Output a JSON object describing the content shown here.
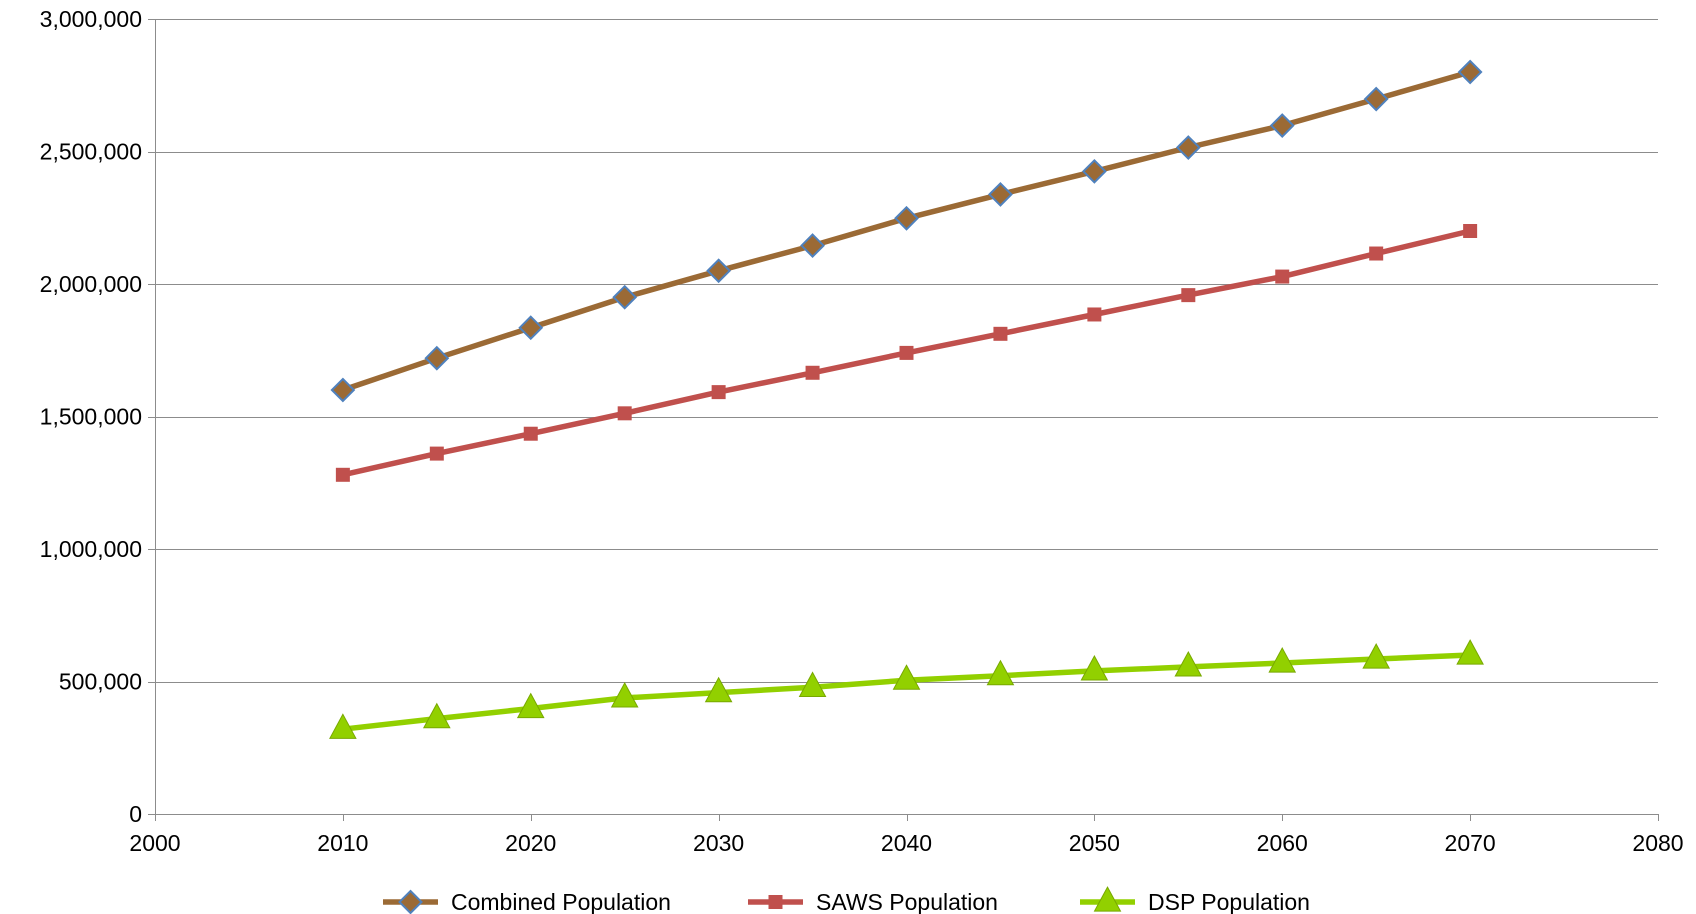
{
  "chart_data": {
    "type": "line",
    "title": "",
    "xlabel": "",
    "ylabel": "",
    "xlim": [
      2000,
      2080
    ],
    "ylim": [
      0,
      3000000
    ],
    "x_ticks": [
      2000,
      2010,
      2020,
      2030,
      2040,
      2050,
      2060,
      2070,
      2080
    ],
    "x_tick_labels": [
      "2000",
      "2010",
      "2020",
      "2030",
      "2040",
      "2050",
      "2060",
      "2070",
      "2080"
    ],
    "y_ticks": [
      0,
      500000,
      1000000,
      1500000,
      2000000,
      2500000,
      3000000
    ],
    "y_tick_labels": [
      "0",
      "500,000",
      "1,000,000",
      "1,500,000",
      "2,000,000",
      "2,500,000",
      "3,000,000"
    ],
    "grid": "horizontal",
    "legend_position": "bottom",
    "x": [
      2010,
      2015,
      2020,
      2025,
      2030,
      2035,
      2040,
      2045,
      2050,
      2055,
      2060,
      2065,
      2070
    ],
    "series": [
      {
        "name": "Combined Population",
        "color": "#9b6a35",
        "marker": "diamond",
        "marker_fill": "#9b6a35",
        "marker_stroke": "#4f81bd",
        "values": [
          1600000,
          1720000,
          1835000,
          1950000,
          2050000,
          2145000,
          2248000,
          2338000,
          2425000,
          2515000,
          2598000,
          2698000,
          2800000
        ]
      },
      {
        "name": "SAWS Population",
        "color": "#c0504d",
        "marker": "square",
        "marker_fill": "#c0504d",
        "marker_stroke": "#c0504d",
        "values": [
          1280000,
          1360000,
          1435000,
          1512000,
          1592000,
          1665000,
          1740000,
          1812000,
          1885000,
          1958000,
          2028000,
          2115000,
          2200000
        ]
      },
      {
        "name": "DSP Population",
        "color": "#92d000",
        "marker": "triangle",
        "marker_fill": "#92d000",
        "marker_stroke": "#78a800",
        "values": [
          320000,
          360000,
          398000,
          438000,
          458000,
          478000,
          505000,
          522000,
          540000,
          555000,
          570000,
          585000,
          600000
        ]
      }
    ]
  }
}
